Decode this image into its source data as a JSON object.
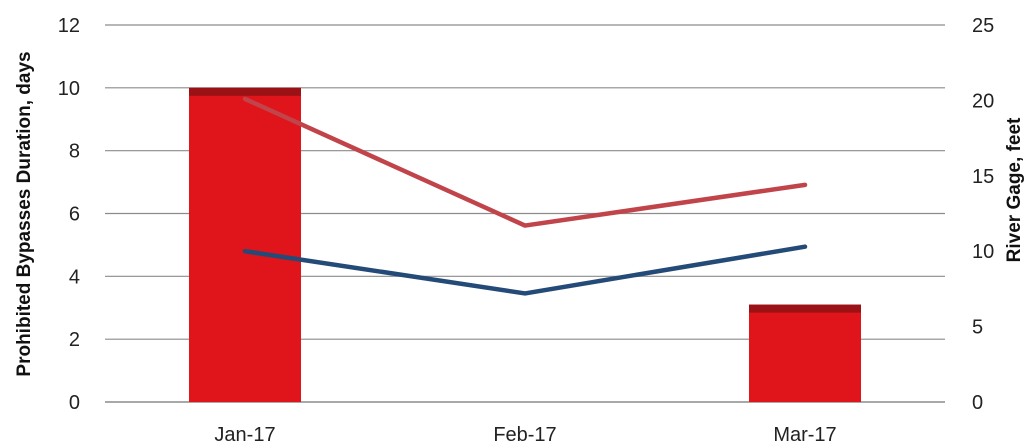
{
  "chart_data": {
    "type": "bar+line",
    "categories": [
      "Jan-17",
      "Feb-17",
      "Mar-17"
    ],
    "bar_series": {
      "values": [
        10,
        0,
        3.1
      ],
      "color": "#e0141b",
      "cap_color": "#9a1216",
      "axis": "left"
    },
    "line_series": [
      {
        "values": [
          20.1,
          11.7,
          14.4
        ],
        "color": "#c0444a",
        "axis": "right"
      },
      {
        "values": [
          10.0,
          7.2,
          10.3
        ],
        "color": "#244a78",
        "axis": "right"
      }
    ],
    "y_left": {
      "label": "Prohibited Bypasses Duration, days",
      "ylim": [
        0,
        12
      ],
      "ticks": [
        "0",
        "2",
        "4",
        "6",
        "8",
        "10",
        "12"
      ]
    },
    "y_right": {
      "label": "River Gage, feet",
      "ylim": [
        0,
        25
      ],
      "ticks": [
        "0",
        "5",
        "10",
        "15",
        "20",
        "25"
      ]
    },
    "grid": true,
    "grid_color": "#8c8c8c"
  }
}
